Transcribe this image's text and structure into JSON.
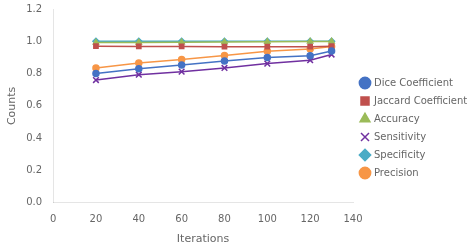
{
  "chart_data": {
    "type": "line",
    "x": [
      20,
      40,
      60,
      80,
      100,
      120,
      130
    ],
    "series": [
      {
        "name": "Dice Coefficient",
        "color": "#4472C4",
        "marker": "circle",
        "values": [
          0.8,
          0.83,
          0.853,
          0.878,
          0.9,
          0.91,
          0.94
        ]
      },
      {
        "name": "Jaccard Coefficient",
        "color": "#C0504D",
        "marker": "square",
        "values": [
          0.97,
          0.968,
          0.968,
          0.967,
          0.967,
          0.967,
          0.97
        ]
      },
      {
        "name": "Accuracy",
        "color": "#9BBB59",
        "marker": "triangle",
        "values": [
          0.992,
          0.993,
          0.994,
          0.995,
          0.997,
          0.998,
          0.999
        ]
      },
      {
        "name": "Sensitivity",
        "color": "#7030A0",
        "marker": "cross",
        "values": [
          0.76,
          0.793,
          0.812,
          0.835,
          0.862,
          0.883,
          0.918
        ]
      },
      {
        "name": "Specificity",
        "color": "#4BACC6",
        "marker": "diamond",
        "values": [
          1.0,
          1.0,
          1.0,
          1.0,
          1.0,
          1.0,
          1.0
        ]
      },
      {
        "name": "Precision",
        "color": "#F79646",
        "marker": "circle",
        "values": [
          0.835,
          0.865,
          0.888,
          0.912,
          0.938,
          0.953,
          0.968
        ]
      }
    ],
    "xlabel": "Iterations",
    "ylabel": "Counts",
    "xlim": [
      0,
      140
    ],
    "ylim": [
      0,
      1.2
    ],
    "xticks": [
      0,
      20,
      40,
      60,
      80,
      100,
      120,
      140
    ],
    "yticks": [
      {
        "value": 0,
        "label": "0.0"
      },
      0.2,
      0.4,
      0.6,
      0.8,
      {
        "value": 1.0,
        "label": "1.0"
      },
      1.2
    ],
    "grid": false,
    "legend": "right"
  }
}
